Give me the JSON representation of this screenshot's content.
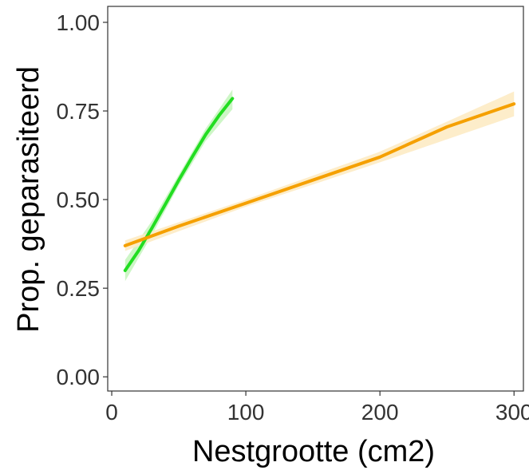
{
  "chart_data": {
    "type": "line",
    "title": "",
    "xlabel": "Nestgrootte (cm2)",
    "ylabel": "Prop. geparasiteerd",
    "xlim": [
      -3,
      307
    ],
    "ylim": [
      -0.04,
      1.045
    ],
    "x_ticks": [
      0,
      100,
      200,
      300
    ],
    "x_tick_labels": [
      "0",
      "100",
      "200",
      "300"
    ],
    "y_ticks": [
      0,
      0.25,
      0.5,
      0.75,
      1.0
    ],
    "y_tick_labels": [
      "0.00",
      "0.25",
      "0.50",
      "0.75",
      "1.00"
    ],
    "grid": false,
    "legend": "none",
    "series": [
      {
        "color": "#22dd22",
        "band_color": "#c8f5c0",
        "points": [
          [
            10,
            0.3
          ],
          [
            20,
            0.356
          ],
          [
            30,
            0.42
          ],
          [
            40,
            0.487
          ],
          [
            50,
            0.555
          ],
          [
            60,
            0.62
          ],
          [
            70,
            0.683
          ],
          [
            80,
            0.737
          ],
          [
            90,
            0.785
          ]
        ],
        "upper": [
          [
            10,
            0.33
          ],
          [
            30,
            0.44
          ],
          [
            50,
            0.57
          ],
          [
            70,
            0.7
          ],
          [
            90,
            0.81
          ]
        ],
        "lower": [
          [
            10,
            0.27
          ],
          [
            30,
            0.4
          ],
          [
            50,
            0.54
          ],
          [
            70,
            0.665
          ],
          [
            90,
            0.755
          ]
        ]
      },
      {
        "color": "#f5a000",
        "band_color": "#fdebc4",
        "points": [
          [
            10,
            0.37
          ],
          [
            50,
            0.425
          ],
          [
            100,
            0.49
          ],
          [
            150,
            0.555
          ],
          [
            200,
            0.62
          ],
          [
            250,
            0.705
          ],
          [
            300,
            0.77
          ]
        ],
        "upper": [
          [
            10,
            0.385
          ],
          [
            100,
            0.5
          ],
          [
            200,
            0.635
          ],
          [
            300,
            0.805
          ]
        ],
        "lower": [
          [
            10,
            0.355
          ],
          [
            100,
            0.48
          ],
          [
            200,
            0.605
          ],
          [
            300,
            0.735
          ]
        ]
      }
    ]
  }
}
